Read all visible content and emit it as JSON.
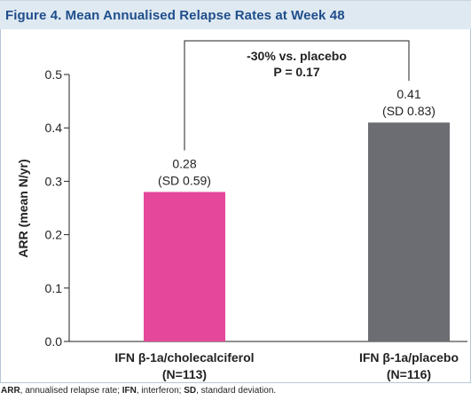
{
  "header": {
    "title": "Figure 4. Mean Annualised Relapse Rates at Week 48"
  },
  "chart_data": {
    "type": "bar",
    "ylabel": "ARR (mean N/yr)",
    "ylim": [
      0,
      0.5
    ],
    "yticks": [
      "0.0",
      "0.1",
      "0.2",
      "0.3",
      "0.4",
      "0.5"
    ],
    "categories": [
      {
        "line1": "IFN β-1a/cholecalciferol",
        "line2": "(N=113)"
      },
      {
        "line1": "IFN β-1a/placebo",
        "line2": "(N=116)"
      }
    ],
    "values": [
      0.28,
      0.41
    ],
    "value_labels": [
      "0.28",
      "0.41"
    ],
    "sd_labels": [
      "(SD 0.59)",
      "(SD 0.83)"
    ],
    "colors": [
      "#e5489a",
      "#6b6d72"
    ],
    "comparison": {
      "line1": "-30% vs. placebo",
      "line2": "P = 0.17"
    }
  },
  "footnote": {
    "parts": [
      {
        "bold": "ARR",
        "text": ", annualised relapse rate; "
      },
      {
        "bold": "IFN",
        "text": ", interferon; "
      },
      {
        "bold": "SD",
        "text": ", standard deviation."
      }
    ]
  }
}
